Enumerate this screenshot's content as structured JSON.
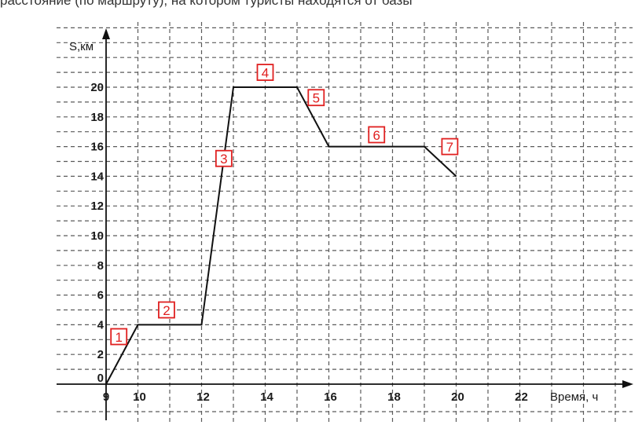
{
  "header_text": "расстояние (по маршруту), на котором туристы находятся от базы",
  "chart_data": {
    "type": "line",
    "title": "",
    "xlabel": "Время, ч",
    "ylabel": "S,км",
    "xlim": [
      9,
      24
    ],
    "ylim": [
      0,
      22
    ],
    "grid": true,
    "x_tick_labels": [
      "9",
      "10",
      "12",
      "14",
      "16",
      "18",
      "20",
      "22"
    ],
    "x_tick_values": [
      9,
      10,
      12,
      14,
      16,
      18,
      20,
      22
    ],
    "y_tick_labels": [
      "0",
      "2",
      "4",
      "6",
      "8",
      "10",
      "12",
      "14",
      "16",
      "18",
      "20"
    ],
    "y_tick_values": [
      0,
      2,
      4,
      6,
      8,
      10,
      12,
      14,
      16,
      18,
      20
    ],
    "series": [
      {
        "x": [
          9,
          10,
          12,
          13,
          15,
          16,
          19,
          20
        ],
        "y": [
          0,
          4,
          4,
          20,
          20,
          16,
          16,
          14
        ]
      }
    ],
    "annotations": [
      {
        "text": "1",
        "x": 9.4,
        "y": 3.2
      },
      {
        "text": "2",
        "x": 10.9,
        "y": 5.0
      },
      {
        "text": "3",
        "x": 12.7,
        "y": 15.2
      },
      {
        "text": "4",
        "x": 14.0,
        "y": 21.0
      },
      {
        "text": "5",
        "x": 15.6,
        "y": 19.3
      },
      {
        "text": "6",
        "x": 17.5,
        "y": 16.8
      },
      {
        "text": "7",
        "x": 19.8,
        "y": 16.0
      }
    ]
  }
}
